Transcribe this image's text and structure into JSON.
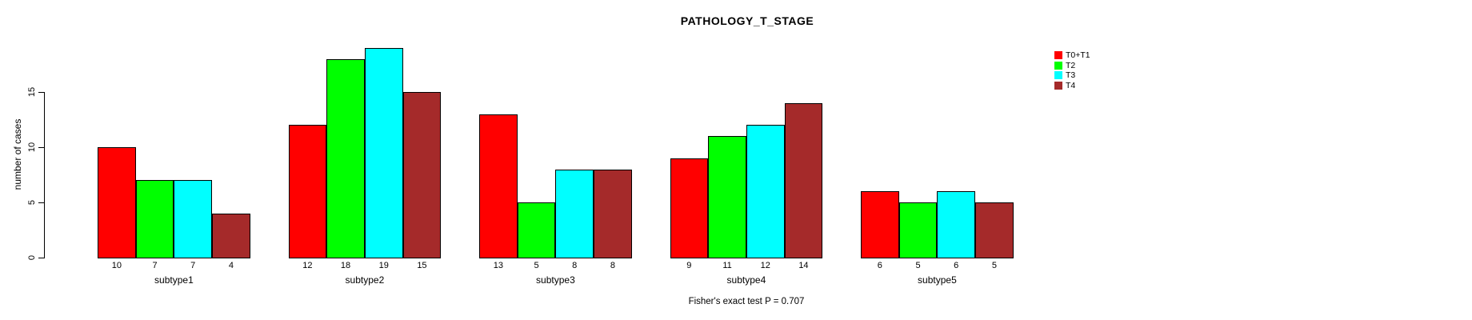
{
  "page": {
    "background": "#ffffff"
  },
  "title": "PATHOLOGY_T_STAGE",
  "ylabel": "number of cases",
  "footer_note": "Fisher's exact test P = 0.707",
  "legend": {
    "items": [
      {
        "label": "T0+T1",
        "color": "#FF0000"
      },
      {
        "label": "T2",
        "color": "#00FF00"
      },
      {
        "label": "T3",
        "color": "#00FFFF"
      },
      {
        "label": "T4",
        "color": "#A52A2A"
      }
    ]
  },
  "chart_data": {
    "type": "bar",
    "title": "PATHOLOGY_T_STAGE",
    "xlabel": "",
    "ylabel": "number of cases",
    "categories": [
      "subtype1",
      "subtype2",
      "subtype3",
      "subtype4",
      "subtype5"
    ],
    "series": [
      {
        "name": "T0+T1",
        "color": "#FF0000",
        "values": [
          10,
          12,
          13,
          9,
          6
        ]
      },
      {
        "name": "T2",
        "color": "#00FF00",
        "values": [
          7,
          18,
          5,
          11,
          5
        ]
      },
      {
        "name": "T3",
        "color": "#00FFFF",
        "values": [
          7,
          19,
          8,
          12,
          6
        ]
      },
      {
        "name": "T4",
        "color": "#A52A2A",
        "values": [
          4,
          15,
          8,
          14,
          5
        ]
      }
    ],
    "bar_value_labels": [
      [
        "10",
        "7",
        "7",
        "4"
      ],
      [
        "12",
        "18",
        "19",
        "15"
      ],
      [
        "13",
        "5",
        "8",
        "8"
      ],
      [
        "9",
        "11",
        "12",
        "14"
      ],
      [
        "6",
        "5",
        "6",
        "5"
      ]
    ],
    "yticks": [
      0,
      5,
      10,
      15
    ],
    "ylim": [
      0,
      19.4
    ],
    "grid": false,
    "legend_position": "top-right",
    "annotation": "Fisher's exact test P = 0.707"
  }
}
